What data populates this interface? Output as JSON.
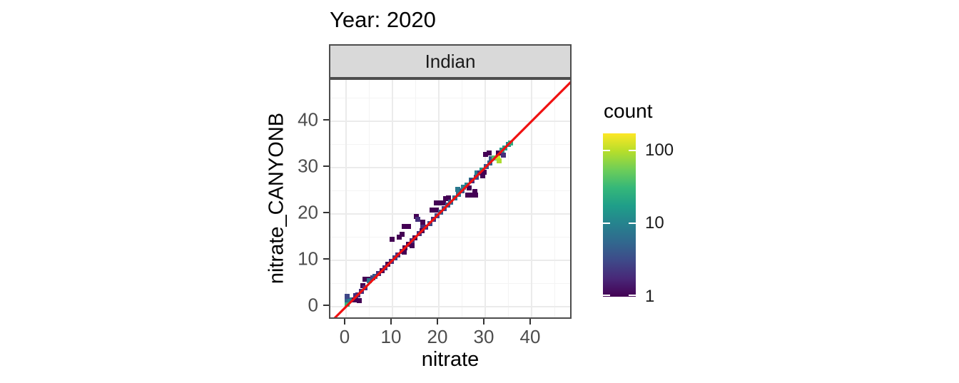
{
  "title": "Year: 2020",
  "facet": {
    "label": "Indian"
  },
  "axes": {
    "x": {
      "label": "nitrate",
      "ticks": [
        0,
        10,
        20,
        30,
        40
      ],
      "minor_ticks": [
        5,
        15,
        25,
        35,
        45
      ],
      "range": [
        -3.4,
        48.9
      ]
    },
    "y": {
      "label": "nitrate_CANYONB",
      "ticks": [
        0,
        10,
        20,
        30,
        40
      ],
      "minor_ticks": [
        5,
        15,
        25,
        35,
        45
      ],
      "range": [
        -2.9,
        48.8
      ]
    }
  },
  "legend": {
    "title": "count",
    "tick_values": [
      100,
      10,
      1
    ],
    "scale": "log10",
    "bar_max_value": 170,
    "bar_min_value": 1
  },
  "colors": {
    "reference_line": "#f01010",
    "strip_background": "#d9d9d9",
    "panel_border": "#4d4d4d",
    "grid_major": "#ebebeb",
    "grid_minor": "#f4f4f4",
    "tick_label": "#4d4d4d",
    "viridis_stops": [
      "#440154",
      "#482878",
      "#3e4a89",
      "#31688e",
      "#26828e",
      "#1f9e89",
      "#35b779",
      "#6ece58",
      "#b5de2b",
      "#fde725"
    ]
  },
  "chart_data": {
    "type": "heatmap",
    "subtype": "bin2d",
    "title": "Year: 2020",
    "facet_label": "Indian",
    "xlabel": "nitrate",
    "ylabel": "nitrate_CANYONB",
    "xlim": [
      -3.4,
      48.9
    ],
    "ylim": [
      -2.9,
      48.8
    ],
    "grid": "on",
    "legend_position": "right",
    "count_scale": "log10",
    "reference_line": {
      "slope": 1,
      "intercept": 0,
      "color": "red"
    },
    "bin_size": 1,
    "bins": [
      [
        0.2,
        0.6,
        30
      ],
      [
        0.2,
        1.4,
        5
      ],
      [
        0.9,
        1.5,
        9
      ],
      [
        0.2,
        2.2,
        3
      ],
      [
        1.7,
        1.5,
        1
      ],
      [
        2.1,
        2.4,
        2
      ],
      [
        2.9,
        1.3,
        1
      ],
      [
        2.6,
        2.6,
        2
      ],
      [
        3.3,
        3.3,
        2
      ],
      [
        3.6,
        4.6,
        1
      ],
      [
        4.1,
        4.1,
        2
      ],
      [
        4.0,
        6.0,
        1
      ],
      [
        4.7,
        6.0,
        1
      ],
      [
        5.0,
        5.6,
        8
      ],
      [
        5.7,
        6.2,
        3
      ],
      [
        6.3,
        6.6,
        4
      ],
      [
        7.0,
        7.2,
        2
      ],
      [
        7.7,
        7.7,
        1
      ],
      [
        8.4,
        8.4,
        2
      ],
      [
        9.0,
        9.2,
        1
      ],
      [
        9.8,
        9.8,
        2
      ],
      [
        9.9,
        14.5,
        1
      ],
      [
        10.5,
        10.6,
        3
      ],
      [
        11.2,
        11.2,
        2
      ],
      [
        11.4,
        15.0,
        1
      ],
      [
        12.0,
        15.6,
        1
      ],
      [
        12.0,
        12.0,
        2
      ],
      [
        12.6,
        17.3,
        1
      ],
      [
        13.4,
        17.3,
        1
      ],
      [
        12.7,
        12.7,
        1
      ],
      [
        12.6,
        11.8,
        1
      ],
      [
        13.4,
        13.4,
        1
      ],
      [
        14.3,
        13.2,
        1
      ],
      [
        14.2,
        14.2,
        2
      ],
      [
        14.9,
        14.9,
        1
      ],
      [
        15.2,
        19.4,
        1
      ],
      [
        15.5,
        18.8,
        2
      ],
      [
        15.7,
        15.7,
        2
      ],
      [
        16.4,
        16.4,
        1
      ],
      [
        16.5,
        17.5,
        2
      ],
      [
        16.5,
        18.3,
        1
      ],
      [
        17.2,
        17.2,
        2
      ],
      [
        18.0,
        18.0,
        3
      ],
      [
        18.6,
        20.9,
        1
      ],
      [
        19.4,
        20.9,
        1
      ],
      [
        18.8,
        18.8,
        2
      ],
      [
        19.5,
        22.4,
        1
      ],
      [
        20.3,
        22.4,
        1
      ],
      [
        21.0,
        22.4,
        1
      ],
      [
        19.6,
        19.6,
        3
      ],
      [
        20.4,
        20.4,
        4
      ],
      [
        21.1,
        21.1,
        3
      ],
      [
        21.4,
        23.3,
        1
      ],
      [
        22.1,
        23.5,
        1
      ],
      [
        21.9,
        21.9,
        4
      ],
      [
        22.6,
        22.6,
        5
      ],
      [
        23.4,
        23.4,
        6
      ],
      [
        24.0,
        25.3,
        8
      ],
      [
        24.2,
        24.2,
        7
      ],
      [
        25.0,
        25.0,
        4
      ],
      [
        25.3,
        25.8,
        9
      ],
      [
        26.0,
        26.3,
        10
      ],
      [
        26.6,
        25.6,
        1
      ],
      [
        27.0,
        27.3,
        9
      ],
      [
        26.3,
        24.1,
        1
      ],
      [
        27.1,
        24.1,
        1
      ],
      [
        27.9,
        24.1,
        1
      ],
      [
        27.7,
        24.9,
        1
      ],
      [
        27.2,
        27.2,
        2
      ],
      [
        28.0,
        28.0,
        3
      ],
      [
        28.2,
        28.9,
        9
      ],
      [
        28.8,
        28.8,
        2
      ],
      [
        29.3,
        29.5,
        15
      ],
      [
        29.4,
        28.3,
        1
      ],
      [
        29.8,
        29.0,
        1
      ],
      [
        30.3,
        30.3,
        4
      ],
      [
        30.0,
        32.8,
        1
      ],
      [
        30.8,
        33.1,
        1
      ],
      [
        31.0,
        31.0,
        5
      ],
      [
        31.3,
        31.9,
        4
      ],
      [
        31.9,
        32.1,
        40
      ],
      [
        32.7,
        32.3,
        120
      ],
      [
        33.0,
        31.5,
        90
      ],
      [
        32.9,
        33.1,
        1
      ],
      [
        33.6,
        33.7,
        15
      ],
      [
        34.3,
        34.3,
        18
      ],
      [
        33.9,
        32.7,
        2
      ],
      [
        35.0,
        35.0,
        12
      ],
      [
        35.5,
        35.3,
        25
      ]
    ]
  }
}
